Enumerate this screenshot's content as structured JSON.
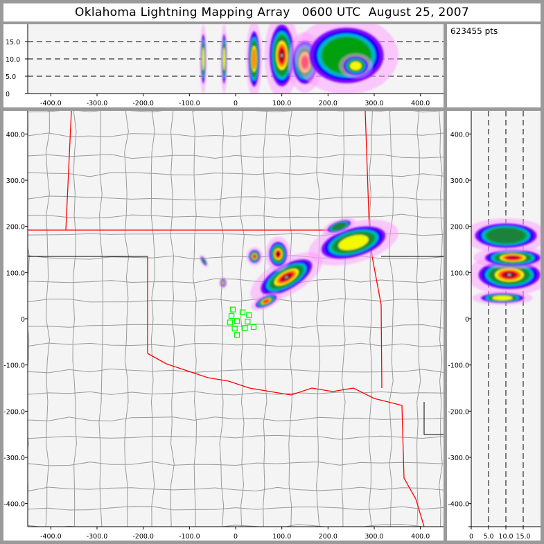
{
  "title": "Oklahoma Lightning Mapping Array   0600 UTC  August 25, 2007",
  "point_count": "623455 pts",
  "colors": {
    "state_border": "#ff0000",
    "county_border": "#999999",
    "station": "#00ff00",
    "plot_bg": "#f4f4f4",
    "frame": "#9a9a9a"
  },
  "chart_data": [
    {
      "type": "heatmap",
      "panel": "altitude-vs-east-west",
      "xlim": [
        -450,
        450
      ],
      "ylim": [
        0,
        20
      ],
      "x_ticks": [
        "-400.0",
        "-300.0",
        "-200.0",
        "-100.0",
        "0",
        "100.0",
        "200.0",
        "300.0",
        "400.0"
      ],
      "y_ticks": [
        "0",
        "5.0",
        "10.0",
        "15.0"
      ],
      "dashed_gridlines_y": [
        5,
        10,
        15
      ],
      "cells": [
        {
          "x": -70,
          "alt": 10,
          "dx": 6,
          "dalt": 8,
          "intensity": 0.55
        },
        {
          "x": -25,
          "alt": 10,
          "dx": 6,
          "dalt": 8,
          "intensity": 0.6
        },
        {
          "x": 40,
          "alt": 10,
          "dx": 14,
          "dalt": 9,
          "intensity": 0.7
        },
        {
          "x": 100,
          "alt": 11,
          "dx": 30,
          "dalt": 10,
          "intensity": 1.0
        },
        {
          "x": 150,
          "alt": 9,
          "dx": 30,
          "dalt": 7,
          "intensity": 0.75
        },
        {
          "x": 240,
          "alt": 11,
          "dx": 90,
          "dalt": 9,
          "intensity": 0.45
        },
        {
          "x": 260,
          "alt": 8,
          "dx": 30,
          "dalt": 3,
          "intensity": 0.6
        }
      ]
    },
    {
      "type": "heatmap",
      "panel": "plan-view",
      "xlim": [
        -450,
        450
      ],
      "ylim": [
        -450,
        450
      ],
      "x_ticks": [
        "-400.0",
        "-300.0",
        "-200.0",
        "-100.0",
        "0",
        "100.0",
        "200.0",
        "300.0",
        "400.0"
      ],
      "y_ticks": [
        "-400.0",
        "-300.0",
        "-200.0",
        "-100.0",
        "0",
        "100.0",
        "200.0",
        "300.0",
        "400.0"
      ],
      "cells": [
        {
          "x": 110,
          "y": 90,
          "rx": 70,
          "ry": 30,
          "rot": -30,
          "intensity": 1.0
        },
        {
          "x": 92,
          "y": 140,
          "rx": 22,
          "ry": 30,
          "rot": 0,
          "intensity": 0.95
        },
        {
          "x": 41,
          "y": 135,
          "rx": 14,
          "ry": 16,
          "rot": 0,
          "intensity": 0.8
        },
        {
          "x": -27,
          "y": 78,
          "rx": 7,
          "ry": 10,
          "rot": 0,
          "intensity": 0.7
        },
        {
          "x": -69,
          "y": 125,
          "rx": 5,
          "ry": 12,
          "rot": -30,
          "intensity": 0.5
        },
        {
          "x": 66,
          "y": 38,
          "rx": 28,
          "ry": 12,
          "rot": -25,
          "intensity": 0.75
        },
        {
          "x": 255,
          "y": 165,
          "rx": 80,
          "ry": 35,
          "rot": -15,
          "intensity": 0.6
        },
        {
          "x": 224,
          "y": 200,
          "rx": 30,
          "ry": 12,
          "rot": -20,
          "intensity": 0.5
        }
      ],
      "stations": [
        [
          -6,
          20
        ],
        [
          15,
          14
        ],
        [
          29,
          8
        ],
        [
          -9,
          6
        ],
        [
          3,
          -5
        ],
        [
          26,
          -6
        ],
        [
          -12,
          -8
        ],
        [
          -2,
          -21
        ],
        [
          20,
          -20
        ],
        [
          39,
          -18
        ],
        [
          3,
          -35
        ]
      ]
    },
    {
      "type": "heatmap",
      "panel": "north-south-vs-altitude",
      "xlim": [
        0,
        20
      ],
      "ylim": [
        -450,
        450
      ],
      "x_ticks": [
        "0",
        "5.0",
        "10.0",
        "15.0"
      ],
      "y_ticks": [
        "-400.0",
        "-300.0",
        "-200.0",
        "-100.0",
        "0",
        "100.0",
        "200.0",
        "300.0",
        "400.0"
      ],
      "dashed_gridlines_x": [
        5,
        10,
        15
      ],
      "cells": [
        {
          "alt": 11,
          "y": 95,
          "dalt": 10,
          "dy": 35,
          "intensity": 1.0
        },
        {
          "alt": 12,
          "y": 132,
          "dalt": 9,
          "dy": 20,
          "intensity": 0.85
        },
        {
          "alt": 10,
          "y": 180,
          "dalt": 10,
          "dy": 30,
          "intensity": 0.5
        },
        {
          "alt": 9,
          "y": 45,
          "dalt": 7,
          "dy": 12,
          "intensity": 0.55
        }
      ]
    }
  ]
}
